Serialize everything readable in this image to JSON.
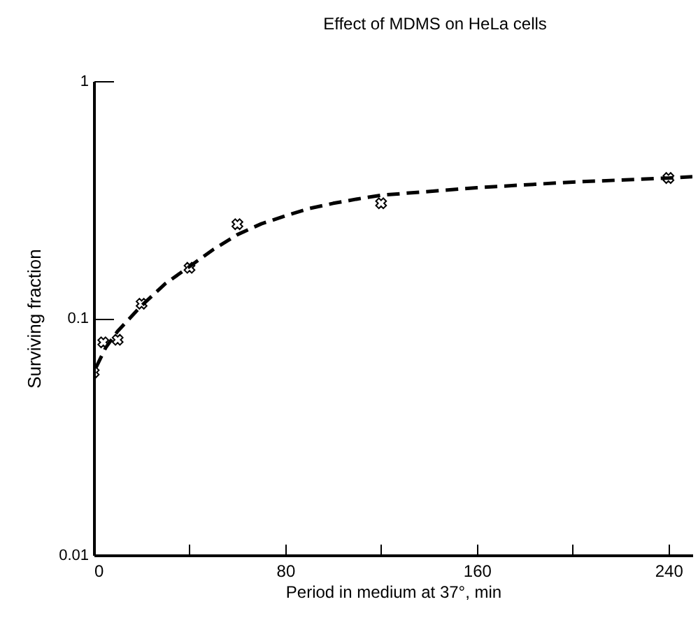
{
  "chart_data": {
    "type": "scatter",
    "title": "Effect of MDMS on HeLa cells",
    "xlabel": "Period in medium at 37°,  min",
    "ylabel": "Surviving  fraction",
    "log": "y",
    "xlim": [
      0,
      250
    ],
    "ylim": [
      0.01,
      1
    ],
    "xticks": [
      0,
      {
        "value": 40,
        "label": null
      },
      80,
      {
        "value": 120,
        "label": null
      },
      160,
      {
        "value": 200,
        "label": null
      },
      240
    ],
    "yticks": [
      {
        "value": 0.01,
        "label": "0.01"
      },
      {
        "value": 0.1,
        "label": "0.1"
      },
      1
    ],
    "grid": false,
    "marker": "cross",
    "series": [
      {
        "color": "#000000",
        "x": [
          0,
          4,
          10,
          20,
          40,
          60,
          120,
          240
        ],
        "values": [
          0.059,
          0.079,
          0.081,
          0.115,
          0.163,
          0.249,
          0.305,
          0.39
        ]
      },
      {
        "type": "line",
        "color": "#000000",
        "marker": "none",
        "line_style": "dashed",
        "x": [
          1,
          5,
          10,
          20,
          30,
          40,
          50,
          60,
          70,
          80,
          90,
          100,
          110,
          120,
          160,
          200,
          240,
          250
        ],
        "values": [
          0.062,
          0.075,
          0.088,
          0.113,
          0.14,
          0.165,
          0.195,
          0.225,
          0.25,
          0.27,
          0.29,
          0.305,
          0.318,
          0.33,
          0.355,
          0.375,
          0.39,
          0.395
        ]
      }
    ]
  }
}
